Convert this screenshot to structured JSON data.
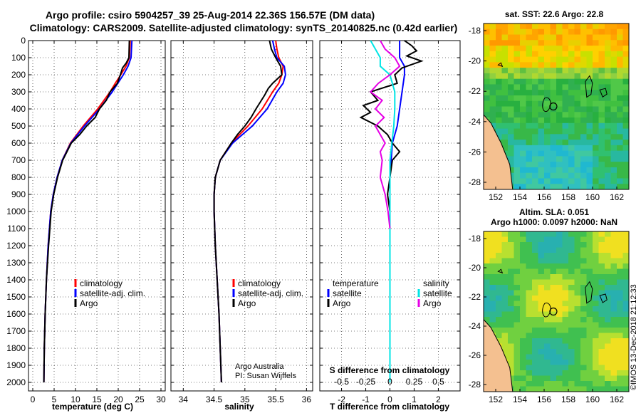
{
  "header": {
    "line1": "Argo profile: csiro 5904257_39 25-Aug-2014 22.36S 156.57E (DM data)",
    "line2": "Climatology: CARS2009. Satellite-adjusted climatology: synTS_20140825.nc (0.42d earlier)"
  },
  "colors": {
    "climatology": "#ff0000",
    "satellite": "#0000ff",
    "argo": "#000000",
    "sat_salinity": "#00e5e5",
    "argo_salinity": "#e600e6"
  },
  "chart_data": [
    {
      "type": "line",
      "name": "temperature-profile",
      "xlabel": "temperature (deg C)",
      "ylabel": "",
      "xlim": [
        -1,
        31
      ],
      "ylim": [
        2050,
        0
      ],
      "xticks": [
        "0",
        "5",
        "10",
        "15",
        "20",
        "25",
        "30"
      ],
      "yticks": [
        "0",
        "100",
        "200",
        "300",
        "400",
        "500",
        "600",
        "700",
        "800",
        "900",
        "1000",
        "1100",
        "1200",
        "1300",
        "1400",
        "1500",
        "1600",
        "1700",
        "1800",
        "1900",
        "2000"
      ],
      "grid": true,
      "legend": [
        "climatology",
        "satellite-adj. clim.",
        "Argo"
      ],
      "series": [
        {
          "name": "climatology",
          "color": "#ff0000",
          "depth": [
            0,
            100,
            150,
            200,
            250,
            300,
            400,
            500,
            600,
            700,
            800,
            900,
            1000,
            1200,
            1400,
            1600,
            1800,
            2000
          ],
          "values": [
            22.8,
            22.6,
            21.8,
            20.6,
            19.3,
            18.1,
            15.2,
            11.8,
            8.8,
            6.9,
            5.7,
            4.8,
            4.2,
            3.6,
            3.2,
            2.9,
            2.7,
            2.6
          ]
        },
        {
          "name": "satellite",
          "color": "#0000ff",
          "depth": [
            0,
            100,
            150,
            200,
            250,
            300,
            400,
            500,
            600,
            700,
            800,
            900,
            1000,
            1200,
            1400,
            1600,
            1800,
            2000
          ],
          "values": [
            23.2,
            23.0,
            22.3,
            21.2,
            19.9,
            18.6,
            15.6,
            12.1,
            8.9,
            6.9,
            5.7,
            4.8,
            4.2,
            3.6,
            3.2,
            2.9,
            2.7,
            2.6
          ]
        },
        {
          "name": "Argo",
          "color": "#000000",
          "depth": [
            0,
            100,
            130,
            160,
            200,
            250,
            300,
            350,
            400,
            450,
            500,
            550,
            600,
            700,
            800,
            900,
            1000,
            1200,
            1400,
            1600,
            1800,
            2000
          ],
          "values": [
            22.6,
            22.5,
            21.9,
            21.0,
            20.5,
            19.8,
            18.1,
            17.2,
            15.6,
            14.6,
            12.6,
            11.0,
            9.0,
            7.0,
            5.8,
            4.9,
            4.3,
            3.7,
            3.2,
            2.9,
            2.7,
            2.6
          ]
        }
      ]
    },
    {
      "type": "line",
      "name": "salinity-profile",
      "xlabel": "salinity",
      "xlim": [
        33.8,
        36.1
      ],
      "ylim": [
        2050,
        0
      ],
      "xticks": [
        "34",
        "34.5",
        "35",
        "35.5",
        "36"
      ],
      "grid": true,
      "legend": [
        "climatology",
        "satellite-adj. clim.",
        "Argo"
      ],
      "series": [
        {
          "name": "climatology",
          "color": "#ff0000",
          "depth": [
            0,
            50,
            100,
            150,
            200,
            250,
            300,
            400,
            500,
            600,
            700,
            800,
            900,
            1000,
            1200,
            1400,
            1600,
            1800,
            2000
          ],
          "values": [
            35.5,
            35.52,
            35.55,
            35.62,
            35.6,
            35.55,
            35.45,
            35.28,
            35.05,
            34.78,
            34.6,
            34.52,
            34.5,
            34.5,
            34.52,
            34.55,
            34.58,
            34.6,
            34.62
          ]
        },
        {
          "name": "satellite",
          "color": "#0000ff",
          "depth": [
            0,
            50,
            100,
            150,
            200,
            250,
            300,
            400,
            500,
            600,
            700,
            800,
            900,
            1000,
            1200,
            1400,
            1600,
            1800,
            2000
          ],
          "values": [
            35.45,
            35.48,
            35.52,
            35.64,
            35.66,
            35.62,
            35.52,
            35.36,
            35.12,
            34.8,
            34.6,
            34.52,
            34.5,
            34.5,
            34.52,
            34.55,
            34.58,
            34.6,
            34.62
          ]
        },
        {
          "name": "Argo",
          "color": "#000000",
          "depth": [
            0,
            50,
            100,
            150,
            200,
            250,
            280,
            320,
            400,
            450,
            500,
            550,
            600,
            700,
            800,
            900,
            1000,
            1200,
            1400,
            1600,
            1800,
            2000
          ],
          "values": [
            35.4,
            35.43,
            35.5,
            35.58,
            35.6,
            35.45,
            35.38,
            35.32,
            35.18,
            35.1,
            35.0,
            34.88,
            34.78,
            34.6,
            34.52,
            34.5,
            34.5,
            34.52,
            34.55,
            34.58,
            34.6,
            34.62
          ]
        }
      ],
      "annotation": [
        "Argo Australia",
        "PI: Susan Wijffels"
      ]
    },
    {
      "type": "line",
      "name": "difference-profile",
      "xlabel": "T difference from climatology",
      "xlabel2": "S difference from climatology",
      "xlim": [
        -2.9,
        2.9
      ],
      "ylim": [
        2050,
        0
      ],
      "xticks": [
        "-2",
        "-1",
        "0",
        "1",
        "2"
      ],
      "xticks_s": [
        "-0.5",
        "-0.25",
        "0",
        "0.25",
        "0.5"
      ],
      "grid": true,
      "legend_temperature": {
        "title": "temperature",
        "items": [
          "satellite",
          "Argo"
        ]
      },
      "legend_salinity": {
        "title": "salinity",
        "items": [
          "satellite",
          "Argo"
        ]
      },
      "series": [
        {
          "name": "T satellite",
          "color": "#0000ff",
          "depth": [
            0,
            100,
            150,
            200,
            300,
            400,
            500,
            600,
            700,
            800,
            900,
            1000,
            1200,
            1400,
            1600,
            1800,
            2000
          ],
          "values": [
            0.4,
            0.4,
            0.6,
            0.6,
            0.5,
            0.4,
            0.3,
            0.1,
            0.05,
            0.0,
            0.0,
            0.0,
            0.0,
            0.0,
            0.0,
            0.0,
            0.0
          ]
        },
        {
          "name": "T Argo",
          "color": "#000000",
          "depth": [
            0,
            30,
            60,
            90,
            120,
            160,
            200,
            250,
            300,
            350,
            380,
            420,
            450,
            500,
            550,
            600,
            650,
            700,
            800,
            900,
            1000,
            1200,
            1400,
            1600,
            1800,
            2000
          ],
          "values": [
            0.6,
            0.9,
            1.1,
            0.7,
            1.3,
            0.5,
            0.2,
            0.3,
            -0.8,
            -0.5,
            -1.1,
            -0.8,
            -1.2,
            -0.5,
            -0.1,
            0.1,
            0.4,
            0.1,
            0.0,
            -0.1,
            0.0,
            0.0,
            0.0,
            0.0,
            0.0,
            0.0
          ]
        }
      ],
      "series_s": [
        {
          "name": "S satellite",
          "color": "#00e5e5",
          "depth": [
            0,
            100,
            150,
            200,
            300,
            400,
            500,
            600,
            700,
            800,
            1000,
            1200,
            1400,
            1600,
            1800,
            2000
          ],
          "values": [
            -0.2,
            -0.1,
            -0.1,
            0.0,
            0.05,
            0.05,
            0.04,
            0.02,
            0.0,
            0.0,
            0.0,
            0.0,
            0.0,
            0.0,
            0.0,
            0.0
          ]
        },
        {
          "name": "S Argo",
          "color": "#e600e6",
          "depth": [
            0,
            50,
            100,
            150,
            200,
            250,
            300,
            350,
            400,
            450,
            500,
            550,
            600,
            650,
            700,
            800,
            900,
            1000,
            1100
          ],
          "values": [
            -0.1,
            -0.05,
            0.05,
            0.1,
            0.0,
            -0.12,
            -0.2,
            -0.08,
            -0.15,
            -0.06,
            -0.15,
            -0.1,
            -0.05,
            -0.1,
            -0.08,
            -0.1,
            -0.05,
            -0.02,
            0.0
          ]
        }
      ]
    }
  ],
  "maps": {
    "sst": {
      "title": "sat. SST: 22.6 Argo: 22.8",
      "xticks": [
        "152",
        "154",
        "156",
        "158",
        "160",
        "162"
      ],
      "yticks": [
        "-18",
        "-20",
        "-22",
        "-24",
        "-26",
        "-28"
      ]
    },
    "sla": {
      "title1": "Altim. SLA: 0.051",
      "title2": "Argo h1000: 0.0097 h2000: NaN",
      "xticks": [
        "152",
        "154",
        "156",
        "158",
        "160",
        "162"
      ],
      "yticks": [
        "-18",
        "-20",
        "-22",
        "-24",
        "-26",
        "-28"
      ]
    }
  },
  "footer": {
    "credit": "©IMOS 13-Dec-2018 21:12:33"
  }
}
